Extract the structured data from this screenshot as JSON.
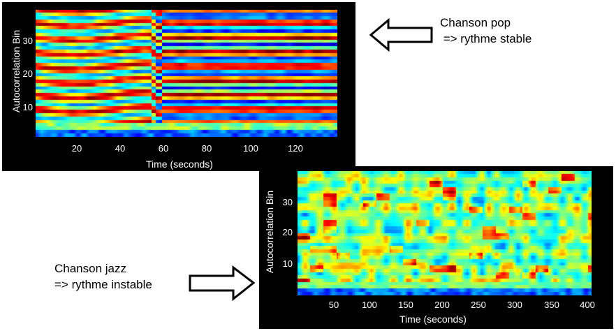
{
  "chart_data": [
    {
      "type": "heatmap",
      "xlabel": "Time (seconds)",
      "ylabel": "Autocorrelation Bin",
      "xlim": [
        0,
        140
      ],
      "ylim": [
        0,
        38
      ],
      "xticks": [
        "20",
        "40",
        "60",
        "80",
        "100",
        "120"
      ],
      "yticks": [
        "10",
        "20",
        "30"
      ],
      "colormap": "jet",
      "pattern": "stable"
    },
    {
      "type": "heatmap",
      "xlabel": "Time (seconds)",
      "ylabel": "Autocorrelation Bin",
      "xlim": [
        0,
        405
      ],
      "ylim": [
        0,
        38
      ],
      "xticks": [
        "50",
        "100",
        "150",
        "200",
        "250",
        "300",
        "350",
        "400"
      ],
      "yticks": [
        "10",
        "20",
        "30"
      ],
      "colormap": "jet",
      "pattern": "unstable"
    }
  ],
  "annotations": {
    "pop": {
      "line1": "Chanson pop",
      "line2": " => rythme stable"
    },
    "jazz": {
      "line1": "Chanson jazz",
      "line2": "=> rythme instable"
    }
  },
  "colors": {
    "arrow_fill": "#ffffff",
    "arrow_stroke": "#000000",
    "panel_bg": "#000000"
  }
}
